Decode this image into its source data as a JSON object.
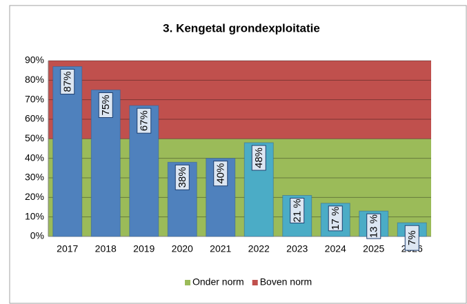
{
  "chart_data": {
    "type": "bar",
    "title": "3. Kengetal grondexploitatie",
    "categories": [
      "2017",
      "2018",
      "2019",
      "2020",
      "2021",
      "2022",
      "2023",
      "2024",
      "2025",
      "2026"
    ],
    "values": [
      87,
      75,
      67,
      38,
      40,
      48,
      21,
      17,
      13,
      7
    ],
    "value_labels": [
      "87%",
      "75%",
      "67%",
      "38%",
      "40%",
      "48%",
      "21 %",
      "17 %",
      "13 %",
      "7%"
    ],
    "colors": [
      "#4f81bd",
      "#4f81bd",
      "#4f81bd",
      "#4f81bd",
      "#4f81bd",
      "#4bacc6",
      "#4bacc6",
      "#4bacc6",
      "#4bacc6",
      "#4bacc6"
    ],
    "bands": [
      {
        "name": "Onder norm",
        "color": "#9bbb59",
        "range": [
          0,
          50
        ]
      },
      {
        "name": "Boven norm",
        "color": "#c0504d",
        "range": [
          50,
          90
        ]
      }
    ],
    "ylim": [
      0,
      90
    ],
    "yticks": [
      {
        "value": 0,
        "label": "0%"
      },
      {
        "value": 10,
        "label": "10%"
      },
      {
        "value": 20,
        "label": "20%"
      },
      {
        "value": 30,
        "label": "30%"
      },
      {
        "value": 40,
        "label": "40%"
      },
      {
        "value": 50,
        "label": "50%"
      },
      {
        "value": 60,
        "label": "60%"
      },
      {
        "value": 70,
        "label": "70%"
      },
      {
        "value": 80,
        "label": "80%"
      },
      {
        "value": 90,
        "label": "90%"
      }
    ],
    "grid": true,
    "legend": "bottom"
  }
}
